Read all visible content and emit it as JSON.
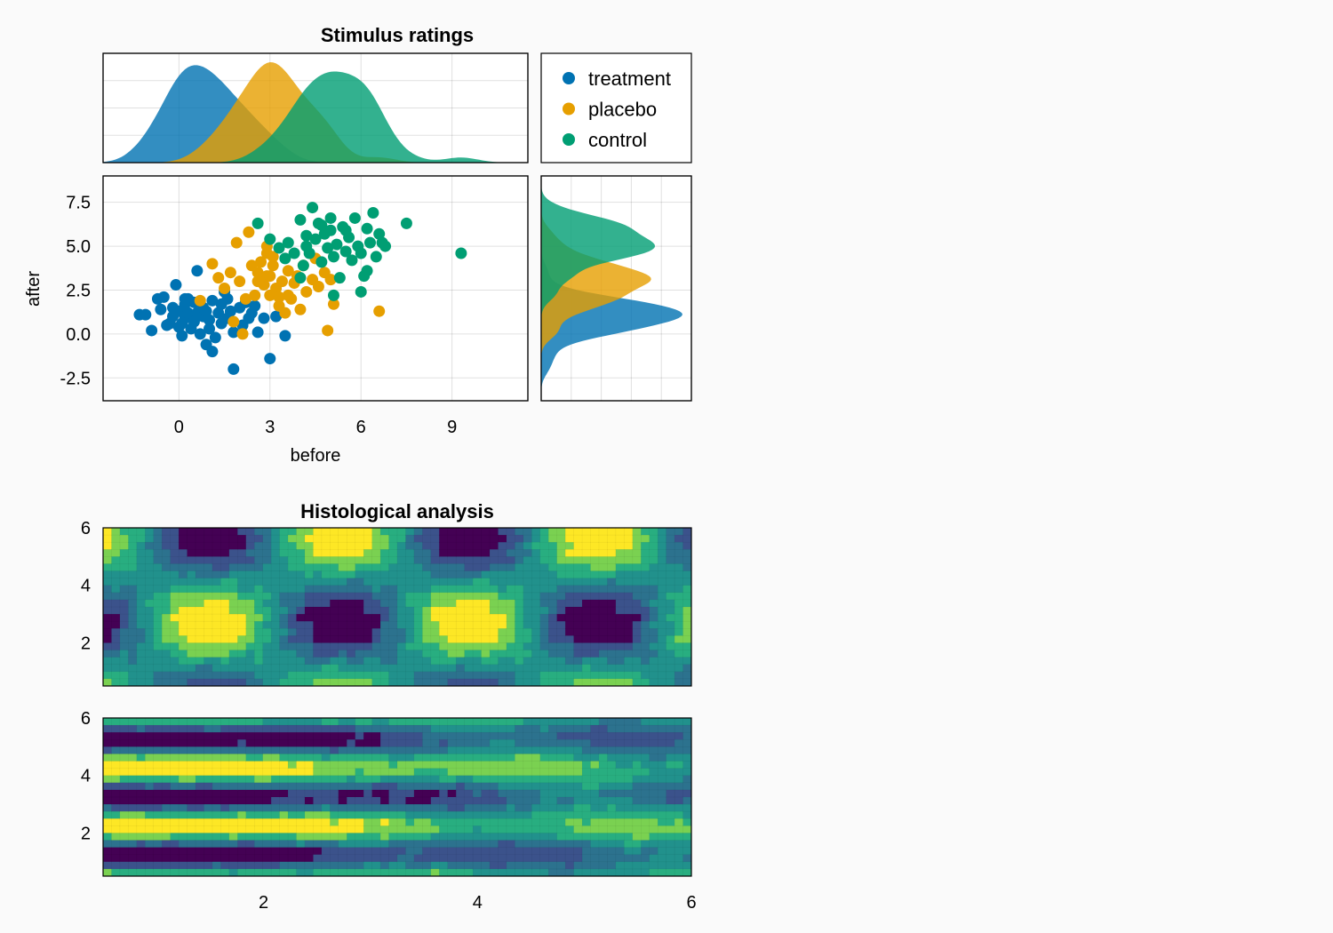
{
  "colors": {
    "treatment": "#0072b2",
    "placebo": "#e69f00",
    "control": "#009e73",
    "background": "#fafafa",
    "viridis": [
      "#440154",
      "#3b528b",
      "#2c728e",
      "#21918c",
      "#28ae80",
      "#7ad151",
      "#fde725"
    ]
  },
  "chart_data": [
    {
      "id": "stimulus",
      "type": "scatter",
      "title": "Stimulus ratings",
      "xlabel": "before",
      "ylabel": "after",
      "xlim": [
        -2.5,
        11.5
      ],
      "ylim": [
        -3.8,
        9.0
      ],
      "xticks": [
        0,
        3,
        6,
        9
      ],
      "yticks": [
        -2.5,
        0.0,
        2.5,
        5.0,
        7.5
      ],
      "xtick_labels": [
        "0",
        "3",
        "6",
        "9"
      ],
      "ytick_labels": [
        "-2.5",
        "0.0",
        "2.5",
        "5.0",
        "7.5"
      ],
      "grid": true,
      "legend_placement": "top-right panel",
      "series": [
        {
          "name": "treatment",
          "color": "#0072b2",
          "points": [
            [
              -1.3,
              1.1
            ],
            [
              -1.1,
              1.1
            ],
            [
              -0.9,
              0.2
            ],
            [
              -0.7,
              2.0
            ],
            [
              -0.6,
              1.4
            ],
            [
              -0.5,
              2.1
            ],
            [
              -0.3,
              0.6
            ],
            [
              -0.2,
              1.5
            ],
            [
              -0.2,
              1.0
            ],
            [
              -0.1,
              2.8
            ],
            [
              0.0,
              1.3
            ],
            [
              0.0,
              0.4
            ],
            [
              0.1,
              0.6
            ],
            [
              0.1,
              -0.1
            ],
            [
              0.2,
              1.7
            ],
            [
              0.2,
              0.9
            ],
            [
              0.3,
              1.2
            ],
            [
              0.3,
              2.0
            ],
            [
              0.4,
              0.3
            ],
            [
              0.5,
              1.8
            ],
            [
              0.5,
              0.7
            ],
            [
              0.6,
              1.2
            ],
            [
              0.6,
              3.6
            ],
            [
              0.7,
              0.0
            ],
            [
              0.8,
              1.0
            ],
            [
              0.8,
              1.5
            ],
            [
              0.9,
              -0.6
            ],
            [
              1.0,
              0.8
            ],
            [
              1.0,
              0.3
            ],
            [
              1.1,
              1.9
            ],
            [
              1.1,
              -1.0
            ],
            [
              1.2,
              -0.2
            ],
            [
              1.3,
              1.2
            ],
            [
              1.4,
              0.6
            ],
            [
              1.4,
              1.7
            ],
            [
              1.5,
              2.4
            ],
            [
              1.6,
              0.9
            ],
            [
              1.7,
              1.3
            ],
            [
              1.8,
              -2.0
            ],
            [
              1.8,
              0.1
            ],
            [
              2.0,
              1.5
            ],
            [
              2.1,
              0.5
            ],
            [
              2.2,
              1.8
            ],
            [
              2.3,
              0.9
            ],
            [
              2.4,
              1.2
            ],
            [
              2.6,
              0.1
            ],
            [
              2.8,
              0.9
            ],
            [
              3.0,
              -1.4
            ],
            [
              3.2,
              1.0
            ],
            [
              3.5,
              -0.1
            ],
            [
              0.2,
              2.0
            ],
            [
              0.9,
              1.3
            ],
            [
              1.6,
              2.0
            ],
            [
              -0.4,
              0.5
            ],
            [
              2.5,
              1.6
            ]
          ]
        },
        {
          "name": "placebo",
          "color": "#e69f00",
          "points": [
            [
              0.7,
              1.9
            ],
            [
              1.1,
              4.0
            ],
            [
              1.3,
              3.2
            ],
            [
              1.5,
              2.6
            ],
            [
              1.7,
              3.5
            ],
            [
              1.8,
              0.7
            ],
            [
              1.9,
              5.2
            ],
            [
              2.0,
              3.0
            ],
            [
              2.1,
              0.0
            ],
            [
              2.2,
              2.0
            ],
            [
              2.3,
              5.8
            ],
            [
              2.4,
              3.9
            ],
            [
              2.5,
              2.2
            ],
            [
              2.6,
              3.5
            ],
            [
              2.7,
              4.1
            ],
            [
              2.8,
              2.8
            ],
            [
              2.9,
              3.3
            ],
            [
              2.9,
              5.0
            ],
            [
              3.0,
              2.2
            ],
            [
              3.1,
              3.9
            ],
            [
              3.1,
              4.4
            ],
            [
              3.2,
              2.6
            ],
            [
              3.3,
              1.6
            ],
            [
              3.4,
              3.0
            ],
            [
              3.5,
              1.2
            ],
            [
              3.6,
              3.6
            ],
            [
              3.7,
              2.0
            ],
            [
              3.8,
              2.9
            ],
            [
              3.9,
              3.3
            ],
            [
              4.0,
              1.4
            ],
            [
              4.1,
              3.9
            ],
            [
              4.2,
              2.4
            ],
            [
              4.4,
              3.1
            ],
            [
              4.6,
              2.7
            ],
            [
              4.8,
              3.5
            ],
            [
              5.0,
              3.1
            ],
            [
              5.1,
              1.7
            ],
            [
              4.9,
              0.2
            ],
            [
              6.6,
              1.3
            ],
            [
              3.6,
              2.2
            ],
            [
              2.9,
              4.6
            ],
            [
              3.3,
              2.1
            ],
            [
              4.5,
              4.3
            ],
            [
              2.6,
              3.0
            ],
            [
              3.0,
              3.3
            ]
          ]
        },
        {
          "name": "control",
          "color": "#009e73",
          "points": [
            [
              2.6,
              6.3
            ],
            [
              3.0,
              5.4
            ],
            [
              3.3,
              4.9
            ],
            [
              3.5,
              4.3
            ],
            [
              3.6,
              5.2
            ],
            [
              3.8,
              4.6
            ],
            [
              4.0,
              6.5
            ],
            [
              4.1,
              3.9
            ],
            [
              4.2,
              5.0
            ],
            [
              4.3,
              4.6
            ],
            [
              4.4,
              7.2
            ],
            [
              4.5,
              5.4
            ],
            [
              4.6,
              6.3
            ],
            [
              4.7,
              4.1
            ],
            [
              4.8,
              5.7
            ],
            [
              4.9,
              4.9
            ],
            [
              5.0,
              6.6
            ],
            [
              5.1,
              4.4
            ],
            [
              5.2,
              5.1
            ],
            [
              5.3,
              3.2
            ],
            [
              5.4,
              6.1
            ],
            [
              5.5,
              4.7
            ],
            [
              5.6,
              5.5
            ],
            [
              5.7,
              4.2
            ],
            [
              5.8,
              6.6
            ],
            [
              5.9,
              5.0
            ],
            [
              6.0,
              4.6
            ],
            [
              6.1,
              3.3
            ],
            [
              6.2,
              6.0
            ],
            [
              6.3,
              5.2
            ],
            [
              6.4,
              6.9
            ],
            [
              6.5,
              4.4
            ],
            [
              6.6,
              5.7
            ],
            [
              6.7,
              5.2
            ],
            [
              6.8,
              5.0
            ],
            [
              7.5,
              6.3
            ],
            [
              9.3,
              4.6
            ],
            [
              5.1,
              2.2
            ],
            [
              6.0,
              2.4
            ],
            [
              4.0,
              3.2
            ],
            [
              6.2,
              3.6
            ],
            [
              5.0,
              5.9
            ],
            [
              4.2,
              5.6
            ],
            [
              5.5,
              5.9
            ],
            [
              4.7,
              6.2
            ]
          ]
        }
      ]
    },
    {
      "id": "histology_top",
      "type": "heatmap",
      "title": "Histological analysis",
      "xlim": [
        0.5,
        6.0
      ],
      "ylim": [
        0.5,
        6.0
      ],
      "yticks": [
        2,
        4,
        6
      ],
      "ytick_labels": [
        "2",
        "4",
        "6"
      ],
      "levels": 7
    },
    {
      "id": "histology_bottom",
      "type": "heatmap",
      "xlim": [
        0.5,
        6.0
      ],
      "ylim": [
        0.5,
        6.0
      ],
      "xticks": [
        2,
        4,
        6
      ],
      "yticks": [
        2,
        4,
        6
      ],
      "xtick_labels": [
        "2",
        "4",
        "6"
      ],
      "ytick_labels": [
        "2",
        "4",
        "6"
      ],
      "levels": 7
    }
  ]
}
